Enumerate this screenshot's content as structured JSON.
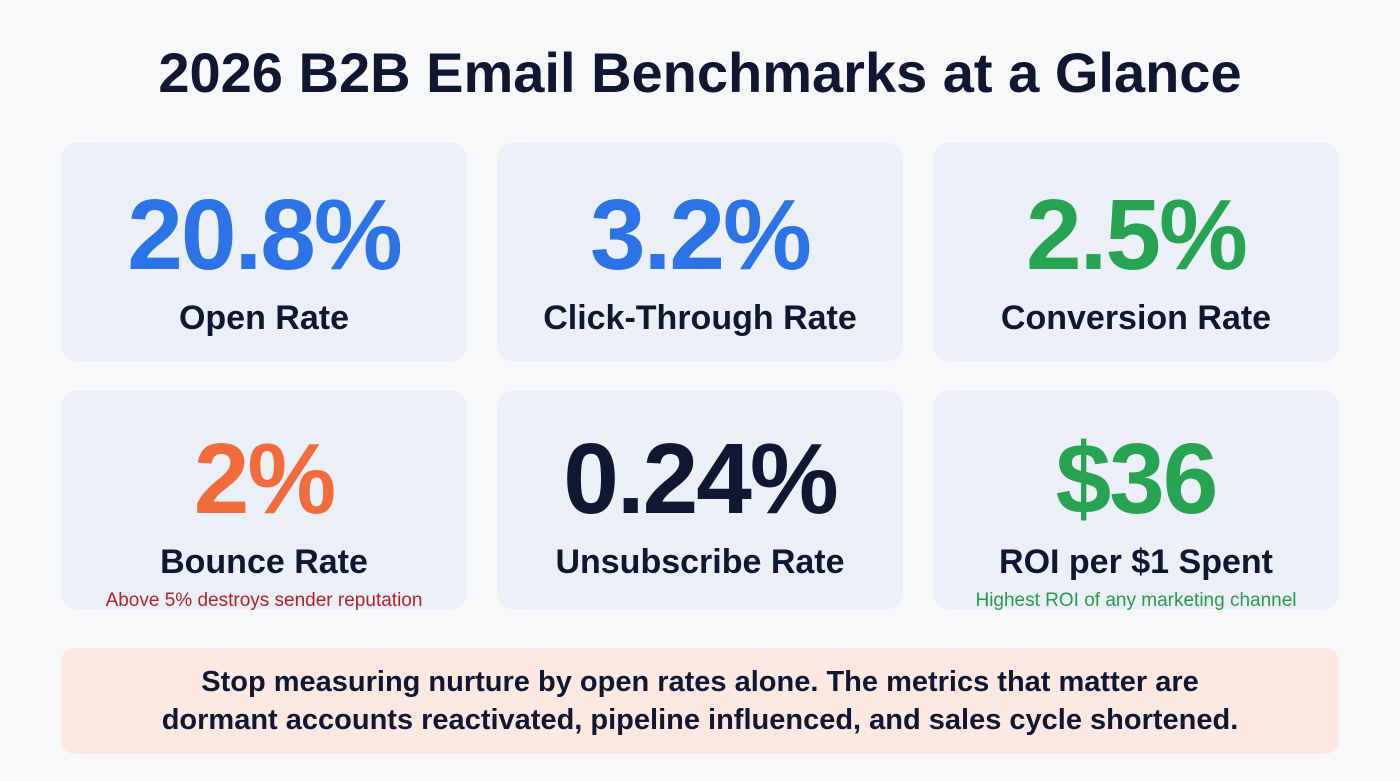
{
  "title": "2026 B2B Email Benchmarks at a Glance",
  "cards": [
    {
      "value": "20.8%",
      "label": "Open Rate",
      "note": "",
      "color": "#2b74e8"
    },
    {
      "value": "3.2%",
      "label": "Click-Through Rate",
      "note": "",
      "color": "#2b74e8"
    },
    {
      "value": "2.5%",
      "label": "Conversion Rate",
      "note": "",
      "color": "#27a452"
    },
    {
      "value": "2%",
      "label": "Bounce Rate",
      "note": "Above 5% destroys sender reputation",
      "color": "#f26b3a",
      "note_color": "#b3232a"
    },
    {
      "value": "0.24%",
      "label": "Unsubscribe Rate",
      "note": "",
      "color": "#0f1733"
    },
    {
      "value": "$36",
      "label": "ROI per $1 Spent",
      "note": "Highest ROI of any marketing channel",
      "color": "#27a452",
      "note_color": "#2a9a4a"
    }
  ],
  "banner": {
    "line1": "Stop measuring nurture by open rates alone. The metrics that matter are",
    "line2": "dormant accounts reactivated, pipeline influenced, and sales cycle shortened."
  }
}
